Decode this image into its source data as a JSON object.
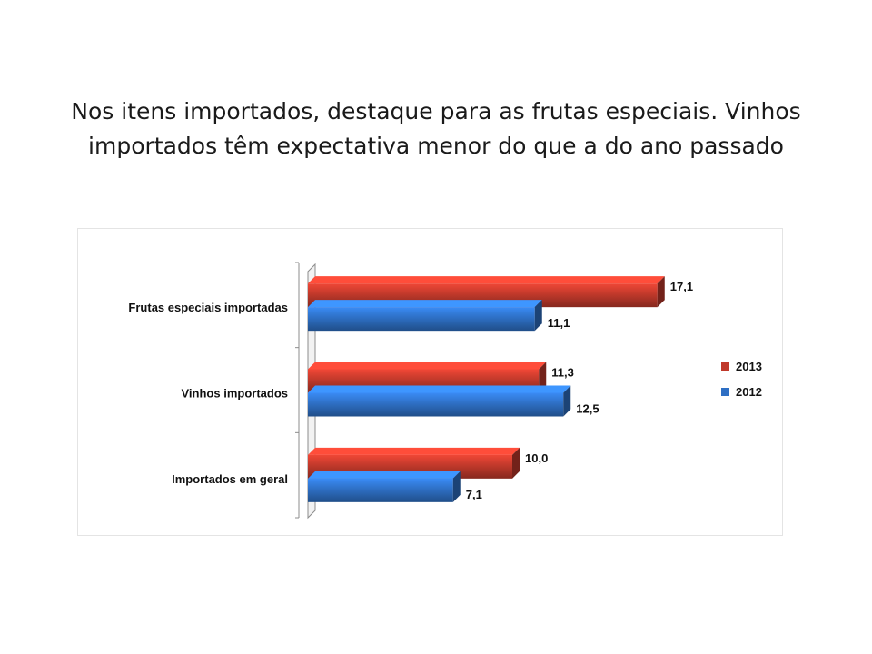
{
  "slide": {
    "title_line1": "Nos itens importados, destaque para as frutas especiais. Vinhos",
    "title_line2": "importados têm expectativa menor do que a do ano passado"
  },
  "chart_data": {
    "type": "bar",
    "orientation": "horizontal",
    "style": "3d-clustered",
    "categories": [
      "Frutas especiais importadas",
      "Vinhos importados",
      "Importados em geral"
    ],
    "series": [
      {
        "name": "2013",
        "color": "#c0392b",
        "values": [
          17.1,
          11.3,
          10.0
        ],
        "labels": [
          "17,1",
          "11,3",
          "10,0"
        ]
      },
      {
        "name": "2012",
        "color": "#2e6fc4",
        "values": [
          11.1,
          12.5,
          7.1
        ],
        "labels": [
          "11,1",
          "12,5",
          "7,1"
        ]
      }
    ],
    "xlim": [
      0,
      18
    ],
    "grid": false,
    "legend_position": "right"
  }
}
